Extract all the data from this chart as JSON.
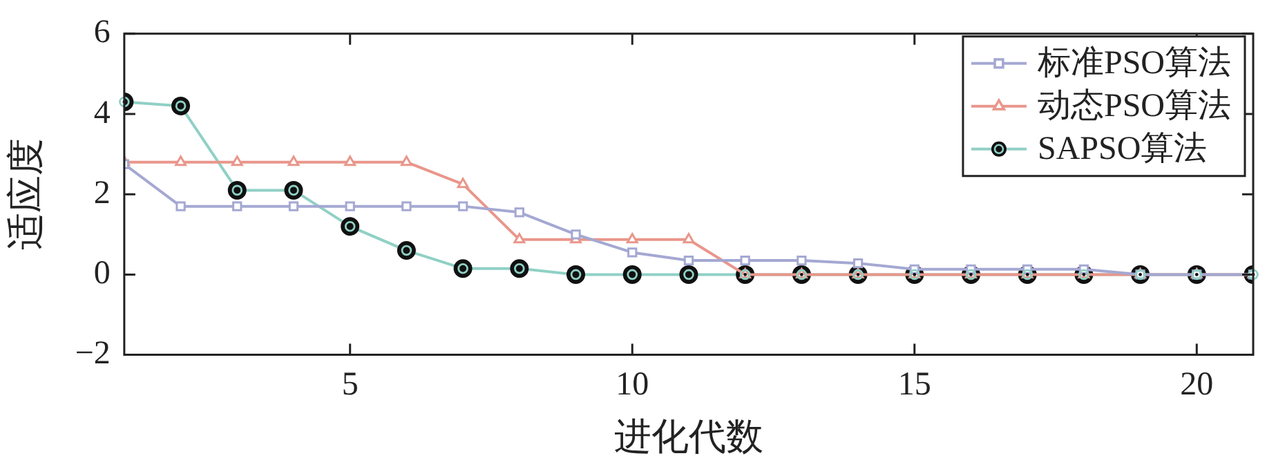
{
  "chart_data": {
    "type": "line",
    "xlabel": "进化代数",
    "ylabel": "适应度",
    "x": [
      1,
      2,
      3,
      4,
      5,
      6,
      7,
      8,
      9,
      10,
      11,
      12,
      13,
      14,
      15,
      16,
      17,
      18,
      19,
      20,
      21
    ],
    "series": [
      {
        "name": "标准PSO算法",
        "color": "#a4a8d2",
        "marker": "square",
        "values": [
          2.75,
          1.7,
          1.7,
          1.7,
          1.7,
          1.7,
          1.7,
          1.55,
          1.0,
          0.55,
          0.35,
          0.35,
          0.35,
          0.28,
          0.13,
          0.13,
          0.13,
          0.13,
          0,
          0,
          0
        ]
      },
      {
        "name": "动态PSO算法",
        "color": "#e9968b",
        "marker": "triangle",
        "values": [
          2.8,
          2.8,
          2.8,
          2.8,
          2.8,
          2.8,
          2.25,
          0.87,
          0.87,
          0.87,
          0.87,
          0,
          0,
          0,
          0,
          0,
          0,
          0,
          0,
          0,
          0
        ]
      },
      {
        "name": "SAPSO算法",
        "color": "#90d0c5",
        "marker": "circle",
        "values": [
          4.3,
          4.2,
          2.1,
          2.1,
          1.2,
          0.6,
          0.15,
          0.15,
          0,
          0,
          0,
          0,
          0,
          0,
          0,
          0,
          0,
          0,
          0,
          0,
          0
        ]
      }
    ],
    "xlim": [
      1,
      21
    ],
    "xticks": [
      5,
      10,
      15,
      20
    ],
    "ylim": [
      -2,
      6
    ],
    "yticks": [
      {
        "value": -2,
        "label": "−2"
      },
      0,
      2,
      4,
      6
    ],
    "grid": false,
    "legend": "top right"
  }
}
